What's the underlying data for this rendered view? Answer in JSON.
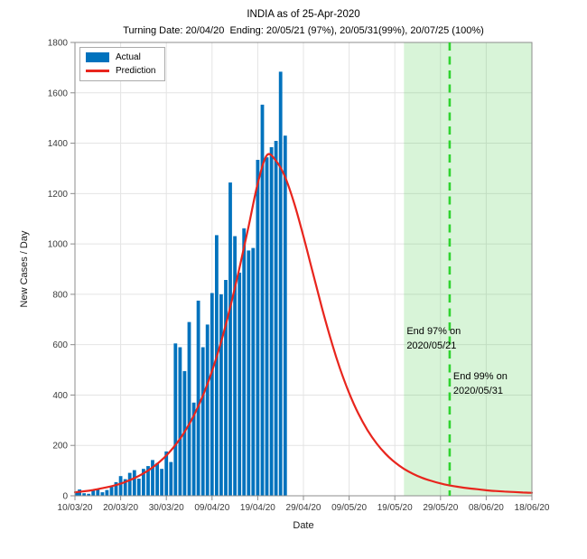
{
  "title": "INDIA as of 25-Apr-2020",
  "subtitle": "Turning Date: 20/04/20  Ending: 20/05/21 (97%), 20/05/31(99%), 20/07/25 (100%)",
  "legend": {
    "actual_label": "Actual",
    "prediction_label": "Prediction"
  },
  "annotations": {
    "end97": {
      "line1": "End 97% on",
      "line2": "2020/05/21",
      "day": 72
    },
    "end99": {
      "line1": "End 99% on",
      "line2": "2020/05/31",
      "day": 82
    }
  },
  "colors": {
    "bar": "#0072BD",
    "prediction_line": "#E8251D",
    "end_region_fill": "rgba(60,200,60,0.2)",
    "end_marker_line": "#2FD32F",
    "grid": "#E4E4E4",
    "axis_box": "#8C8C8C",
    "tick_text": "#3A3A3A"
  },
  "chart_data": {
    "type": "bar+line",
    "title": "INDIA as of 25-Apr-2020",
    "xlabel": "Date",
    "ylabel": "New Cases / Day",
    "ylim": [
      0,
      1800
    ],
    "ytick_step": 200,
    "ytick_labels": [
      "0",
      "200",
      "400",
      "600",
      "800",
      "1000",
      "1200",
      "1400",
      "1600",
      "1800"
    ],
    "x_total_days": 100,
    "xtick_labels": [
      "10/03/20",
      "20/03/20",
      "30/03/20",
      "09/04/20",
      "19/04/20",
      "29/04/20",
      "09/05/20",
      "19/05/20",
      "29/05/20",
      "08/06/20",
      "18/06/20"
    ],
    "xtick_day_offsets": [
      0,
      10,
      20,
      30,
      40,
      50,
      60,
      70,
      80,
      90,
      100
    ],
    "grid": "on",
    "legend_position": "top-left",
    "turning_date": "20/04/20",
    "series": [
      {
        "name": "Actual",
        "type": "bar",
        "dates": [
          "10/03/20",
          "11/03/20",
          "12/03/20",
          "13/03/20",
          "14/03/20",
          "15/03/20",
          "16/03/20",
          "17/03/20",
          "18/03/20",
          "19/03/20",
          "20/03/20",
          "21/03/20",
          "22/03/20",
          "23/03/20",
          "24/03/20",
          "25/03/20",
          "26/03/20",
          "27/03/20",
          "28/03/20",
          "29/03/20",
          "30/03/20",
          "31/03/20",
          "01/04/20",
          "02/04/20",
          "03/04/20",
          "04/04/20",
          "05/04/20",
          "06/04/20",
          "07/04/20",
          "08/04/20",
          "09/04/20",
          "10/04/20",
          "11/04/20",
          "12/04/20",
          "13/04/20",
          "14/04/20",
          "15/04/20",
          "16/04/20",
          "17/04/20",
          "18/04/20",
          "19/04/20",
          "20/04/20",
          "21/04/20",
          "22/04/20",
          "23/04/20",
          "24/04/20",
          "25/04/20"
        ],
        "values": [
          18,
          25,
          10,
          8,
          22,
          27,
          14,
          23,
          37,
          54,
          78,
          66,
          91,
          102,
          68,
          107,
          118,
          142,
          130,
          107,
          176,
          134,
          605,
          590,
          495,
          690,
          370,
          775,
          590,
          680,
          805,
          1035,
          800,
          857,
          1244,
          1031,
          886,
          1062,
          974,
          984,
          1334,
          1553,
          1344,
          1384,
          1409,
          1684,
          1430
        ]
      },
      {
        "name": "Prediction",
        "type": "line",
        "start_day": 0,
        "sample_step_days": 2,
        "peak_value": 1352,
        "peak_date": "21/04/20",
        "values": [
          14,
          18,
          23,
          30,
          38,
          48,
          62,
          79,
          100,
          127,
          160,
          202,
          254,
          318,
          398,
          495,
          612,
          750,
          905,
          1070,
          1240,
          1352,
          1330,
          1265,
          1160,
          1030,
          890,
          750,
          620,
          505,
          408,
          327,
          261,
          208,
          166,
          133,
          107,
          87,
          71,
          59,
          49,
          41,
          35,
          30,
          26,
          22,
          19,
          17,
          15,
          13,
          12
        ]
      }
    ],
    "end_region": {
      "start_day": 72,
      "start_date": "2020/05/21",
      "label": "97% ending region"
    },
    "end99_marker": {
      "day": 82,
      "date": "2020/05/31"
    }
  }
}
